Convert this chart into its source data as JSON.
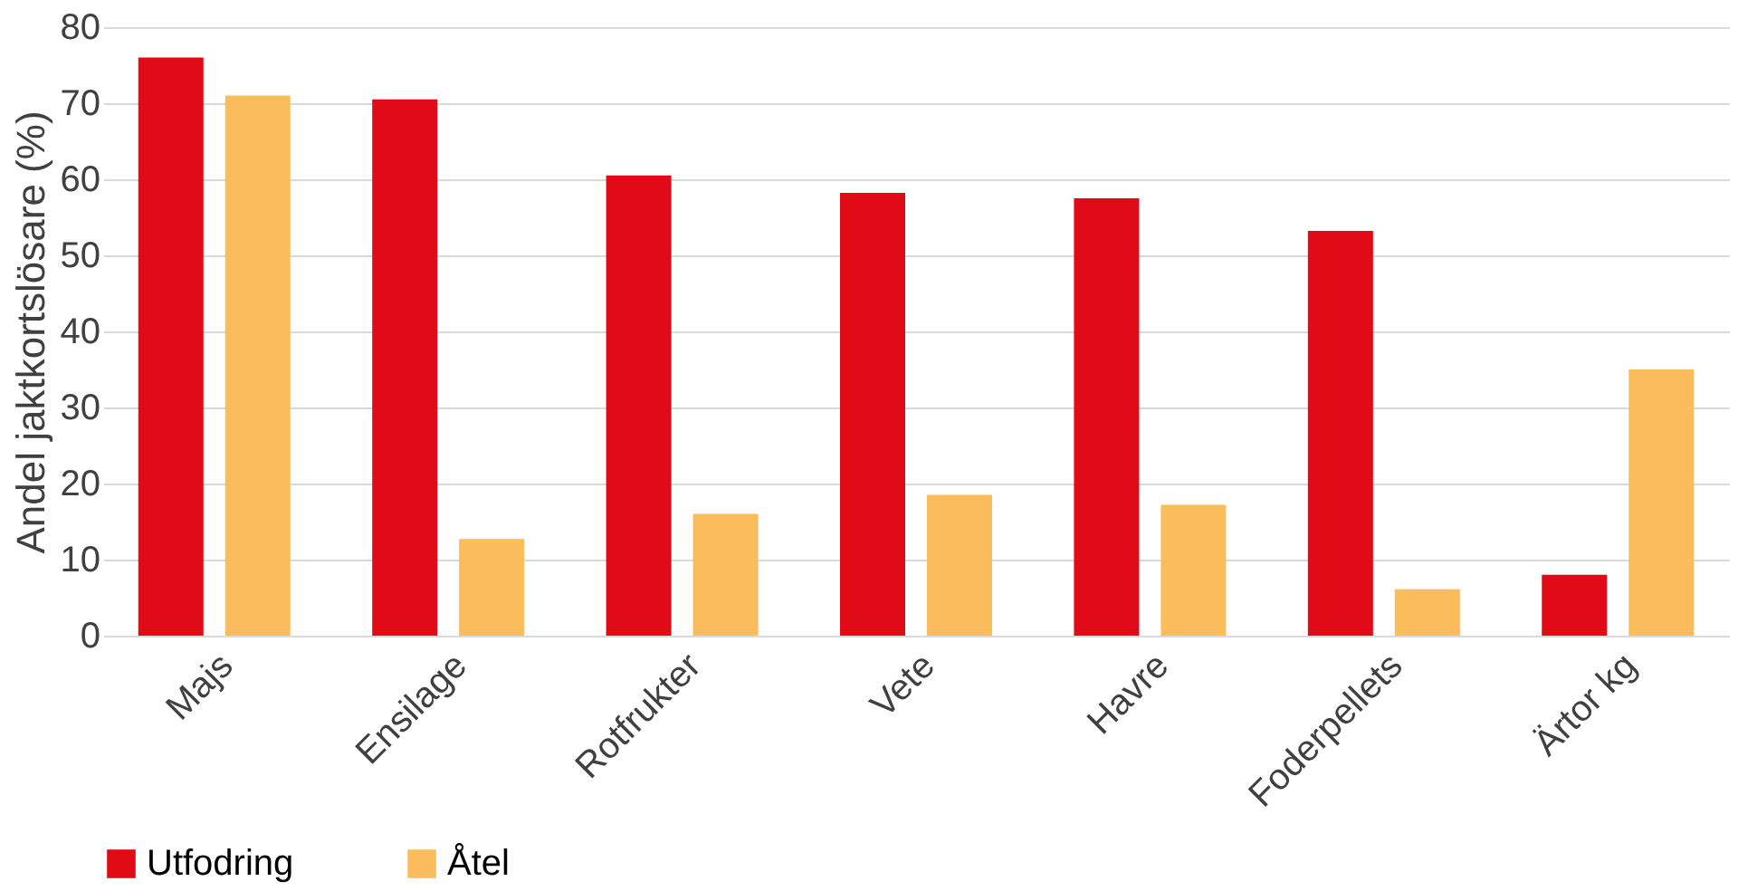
{
  "chart_data": {
    "type": "bar",
    "ylabel": "Andel jaktkortslösare (%)",
    "categories": [
      "Majs",
      "Ensilage",
      "Rotfrukter",
      "Vete",
      "Havre",
      "Foderpellets",
      "Ärtor kg"
    ],
    "series": [
      {
        "name": "Utfodring",
        "color": "#e10a17",
        "values": [
          76,
          70.5,
          60.5,
          58.2,
          57.5,
          53.2,
          8
        ]
      },
      {
        "name": "Åtel",
        "color": "#fbbd5c",
        "values": [
          71,
          12.7,
          16,
          18.5,
          17.2,
          6.1,
          35
        ]
      }
    ],
    "ylim": [
      0,
      80
    ],
    "yticks": [
      0,
      10,
      20,
      30,
      40,
      50,
      60,
      70,
      80
    ],
    "grid": "y",
    "legend": "bottom"
  }
}
